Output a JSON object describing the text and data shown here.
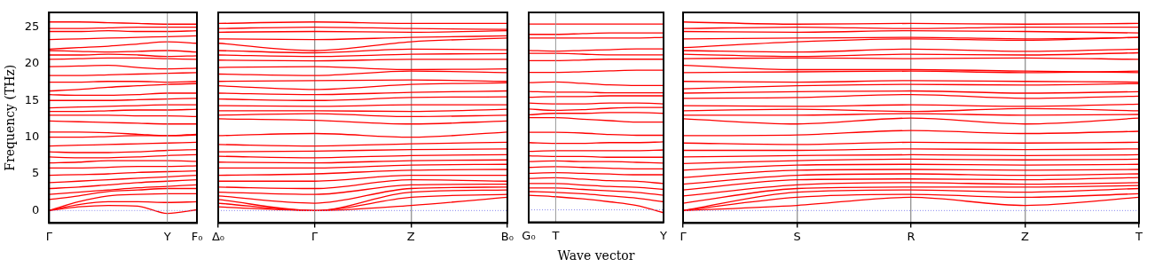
{
  "chart_data": [
    {
      "type": "line",
      "ylabel": "Frequency (THz)",
      "categories": [
        "Γ",
        null,
        null,
        null,
        "Y",
        "F₀"
      ],
      "ylim": [
        -1.7,
        27
      ],
      "yticks": [
        0,
        5,
        10,
        15,
        20,
        25
      ],
      "ref_lines": [
        {
          "axis": "y",
          "value": 0,
          "color": "#8888ee",
          "line_style": "dotted"
        },
        {
          "axis": "x",
          "value": "Y",
          "color": "#999999",
          "line_style": "solid"
        }
      ],
      "series": [
        {
          "color": "#ff0000",
          "values": [
            0,
            0.5,
            0.7,
            0.6,
            -0.4,
            0.1
          ]
        },
        {
          "color": "#ff0000",
          "values": [
            0,
            0.8,
            1.2,
            1.2,
            1.1,
            1.2
          ]
        },
        {
          "color": "#ff0000",
          "values": [
            0,
            1.2,
            2.0,
            2.2,
            2.3,
            2.3
          ]
        },
        {
          "color": "#ff0000",
          "values": [
            1.5,
            2.0,
            2.6,
            2.8,
            3.0,
            3.0
          ]
        },
        {
          "color": "#ff0000",
          "values": [
            2.2,
            2.5,
            2.8,
            3.1,
            3.3,
            3.5
          ]
        },
        {
          "color": "#ff0000",
          "values": [
            3.0,
            3.2,
            3.5,
            3.8,
            4.0,
            4.2
          ]
        },
        {
          "color": "#ff0000",
          "values": [
            3.8,
            4.0,
            4.2,
            4.4,
            4.6,
            4.8
          ]
        },
        {
          "color": "#ff0000",
          "values": [
            4.8,
            4.9,
            5.0,
            5.2,
            5.3,
            5.4
          ]
        },
        {
          "color": "#ff0000",
          "values": [
            5.8,
            5.8,
            5.9,
            6.0,
            6.0,
            6.1
          ]
        },
        {
          "color": "#ff0000",
          "values": [
            6.5,
            6.6,
            6.8,
            6.8,
            6.8,
            6.7
          ]
        },
        {
          "color": "#ff0000",
          "values": [
            7.3,
            7.2,
            7.2,
            7.3,
            7.5,
            7.6
          ]
        },
        {
          "color": "#ff0000",
          "values": [
            8.0,
            7.9,
            7.9,
            8.0,
            8.2,
            8.3
          ]
        },
        {
          "color": "#ff0000",
          "values": [
            8.8,
            8.9,
            9.0,
            9.1,
            9.2,
            9.3
          ]
        },
        {
          "color": "#ff0000",
          "values": [
            10.0,
            10.0,
            10.1,
            10.2,
            10.2,
            10.3
          ]
        },
        {
          "color": "#ff0000",
          "values": [
            10.7,
            10.7,
            10.6,
            10.4,
            10.2,
            10.4
          ]
        },
        {
          "color": "#ff0000",
          "values": [
            12.2,
            12.1,
            12.0,
            11.9,
            11.8,
            11.8
          ]
        },
        {
          "color": "#ff0000",
          "values": [
            13.0,
            13.0,
            13.0,
            12.9,
            12.9,
            12.8
          ]
        },
        {
          "color": "#ff0000",
          "values": [
            13.5,
            13.5,
            13.6,
            13.7,
            13.7,
            13.8
          ]
        },
        {
          "color": "#ff0000",
          "values": [
            14.0,
            14.1,
            14.2,
            14.3,
            14.4,
            14.4
          ]
        },
        {
          "color": "#ff0000",
          "values": [
            15.0,
            15.0,
            15.0,
            15.1,
            15.2,
            15.3
          ]
        },
        {
          "color": "#ff0000",
          "values": [
            15.8,
            15.7,
            15.7,
            15.8,
            16.0,
            16.0
          ]
        },
        {
          "color": "#ff0000",
          "values": [
            16.3,
            16.5,
            16.8,
            17.0,
            17.2,
            17.3
          ]
        },
        {
          "color": "#ff0000",
          "values": [
            17.5,
            17.5,
            17.6,
            17.6,
            17.5,
            17.6
          ]
        },
        {
          "color": "#ff0000",
          "values": [
            18.4,
            18.4,
            18.5,
            18.6,
            18.7,
            18.8
          ]
        },
        {
          "color": "#ff0000",
          "values": [
            19.6,
            19.7,
            19.8,
            19.5,
            19.3,
            19.4
          ]
        },
        {
          "color": "#ff0000",
          "values": [
            20.6,
            20.7,
            20.8,
            20.8,
            20.7,
            20.6
          ]
        },
        {
          "color": "#ff0000",
          "values": [
            21.2,
            21.2,
            21.3,
            21.2,
            21.0,
            21.1
          ]
        },
        {
          "color": "#ff0000",
          "values": [
            21.8,
            21.7,
            21.6,
            21.7,
            21.8,
            21.6
          ]
        },
        {
          "color": "#ff0000",
          "values": [
            22.0,
            22.2,
            22.4,
            22.7,
            23.0,
            22.8
          ]
        },
        {
          "color": "#ff0000",
          "values": [
            23.3,
            23.4,
            23.5,
            23.6,
            23.7,
            23.8
          ]
        },
        {
          "color": "#ff0000",
          "values": [
            24.4,
            24.4,
            24.5,
            24.4,
            24.4,
            24.5
          ]
        },
        {
          "color": "#ff0000",
          "values": [
            24.8,
            24.8,
            24.9,
            25.0,
            25.0,
            25.0
          ]
        },
        {
          "color": "#ff0000",
          "values": [
            25.7,
            25.7,
            25.6,
            25.5,
            25.4,
            25.4
          ]
        }
      ]
    },
    {
      "type": "line",
      "categories": [
        "Δ₀",
        "Γ",
        "Z",
        "B₀"
      ],
      "ylim": [
        -1.7,
        27
      ],
      "yticks": [
        0,
        5,
        10,
        15,
        20,
        25
      ],
      "tick_labels": "x",
      "grid": "x",
      "ref_lines": [
        {
          "axis": "y",
          "value": 0,
          "color": "#8888ee",
          "line_style": "dotted"
        }
      ],
      "series": [
        {
          "color": "#ff0000",
          "values": [
            0.5,
            0,
            0.7,
            1.8
          ]
        },
        {
          "color": "#ff0000",
          "values": [
            1.0,
            0,
            1.8,
            2.2
          ]
        },
        {
          "color": "#ff0000",
          "values": [
            1.5,
            0,
            2.5,
            2.8
          ]
        },
        {
          "color": "#ff0000",
          "values": [
            2.0,
            1.0,
            3.0,
            3.2
          ]
        },
        {
          "color": "#ff0000",
          "values": [
            2.5,
            2.2,
            3.5,
            3.6
          ]
        },
        {
          "color": "#ff0000",
          "values": [
            3.2,
            3.0,
            4.2,
            4.0
          ]
        },
        {
          "color": "#ff0000",
          "values": [
            4.0,
            4.0,
            4.8,
            4.8
          ]
        },
        {
          "color": "#ff0000",
          "values": [
            4.8,
            5.0,
            5.5,
            5.6
          ]
        },
        {
          "color": "#ff0000",
          "values": [
            5.8,
            5.8,
            6.2,
            6.3
          ]
        },
        {
          "color": "#ff0000",
          "values": [
            6.6,
            6.5,
            6.8,
            6.9
          ]
        },
        {
          "color": "#ff0000",
          "values": [
            7.4,
            7.2,
            7.5,
            7.6
          ]
        },
        {
          "color": "#ff0000",
          "values": [
            8.0,
            8.1,
            8.3,
            8.4
          ]
        },
        {
          "color": "#ff0000",
          "values": [
            9.0,
            8.8,
            9.1,
            9.3
          ]
        },
        {
          "color": "#ff0000",
          "values": [
            10.2,
            10.5,
            10.0,
            10.7
          ]
        },
        {
          "color": "#ff0000",
          "values": [
            12.5,
            12.3,
            11.8,
            12.2
          ]
        },
        {
          "color": "#ff0000",
          "values": [
            13.0,
            13.2,
            12.8,
            13.0
          ]
        },
        {
          "color": "#ff0000",
          "values": [
            13.6,
            13.6,
            13.5,
            13.8
          ]
        },
        {
          "color": "#ff0000",
          "values": [
            14.3,
            14.2,
            14.4,
            14.4
          ]
        },
        {
          "color": "#ff0000",
          "values": [
            15.2,
            15.0,
            15.4,
            15.5
          ]
        },
        {
          "color": "#ff0000",
          "values": [
            16.0,
            15.8,
            16.1,
            16.3
          ]
        },
        {
          "color": "#ff0000",
          "values": [
            17.0,
            16.5,
            17.2,
            17.4
          ]
        },
        {
          "color": "#ff0000",
          "values": [
            17.6,
            17.7,
            17.8,
            17.6
          ]
        },
        {
          "color": "#ff0000",
          "values": [
            18.6,
            18.4,
            19.0,
            18.8
          ]
        },
        {
          "color": "#ff0000",
          "values": [
            19.5,
            19.6,
            19.2,
            19.3
          ]
        },
        {
          "color": "#ff0000",
          "values": [
            20.5,
            20.4,
            20.6,
            20.6
          ]
        },
        {
          "color": "#ff0000",
          "values": [
            21.2,
            21.0,
            21.3,
            21.4
          ]
        },
        {
          "color": "#ff0000",
          "values": [
            21.8,
            21.5,
            22.0,
            21.9
          ]
        },
        {
          "color": "#ff0000",
          "values": [
            22.8,
            21.8,
            23.0,
            23.5
          ]
        },
        {
          "color": "#ff0000",
          "values": [
            23.4,
            23.3,
            23.6,
            23.8
          ]
        },
        {
          "color": "#ff0000",
          "values": [
            24.3,
            24.4,
            24.3,
            24.5
          ]
        },
        {
          "color": "#ff0000",
          "values": [
            24.8,
            25.0,
            24.8,
            24.7
          ]
        },
        {
          "color": "#ff0000",
          "values": [
            25.5,
            25.7,
            25.5,
            25.5
          ]
        }
      ]
    },
    {
      "type": "line",
      "xlabel": "Wave vector",
      "categories": [
        "G₀",
        "T",
        null,
        null,
        null,
        "Y"
      ],
      "ylim": [
        -1.7,
        27
      ],
      "yticks": [
        0,
        5,
        10,
        15,
        20,
        25
      ],
      "tick_labels": "x",
      "ref_lines": [
        {
          "axis": "y",
          "value": 0,
          "color": "#8888ee",
          "line_style": "dotted"
        },
        {
          "axis": "x",
          "value": "T",
          "color": "#999999",
          "line_style": "solid"
        }
      ],
      "series": [
        {
          "color": "#ff0000",
          "values": [
            2.0,
            1.8,
            1.5,
            1.1,
            0.6,
            -0.4
          ]
        },
        {
          "color": "#ff0000",
          "values": [
            2.5,
            2.4,
            2.2,
            1.9,
            1.6,
            1.1
          ]
        },
        {
          "color": "#ff0000",
          "values": [
            3.0,
            3.0,
            2.8,
            2.6,
            2.4,
            2.0
          ]
        },
        {
          "color": "#ff0000",
          "values": [
            3.6,
            3.6,
            3.4,
            3.2,
            3.1,
            2.8
          ]
        },
        {
          "color": "#ff0000",
          "values": [
            4.3,
            4.4,
            4.2,
            4.0,
            3.9,
            3.6
          ]
        },
        {
          "color": "#ff0000",
          "values": [
            5.0,
            5.1,
            5.0,
            4.9,
            4.8,
            4.8
          ]
        },
        {
          "color": "#ff0000",
          "values": [
            5.8,
            5.9,
            5.8,
            5.7,
            5.6,
            5.6
          ]
        },
        {
          "color": "#ff0000",
          "values": [
            6.6,
            6.7,
            6.6,
            6.6,
            6.5,
            6.4
          ]
        },
        {
          "color": "#ff0000",
          "values": [
            7.4,
            7.3,
            7.3,
            7.2,
            7.2,
            7.2
          ]
        },
        {
          "color": "#ff0000",
          "values": [
            8.0,
            8.1,
            8.1,
            8.1,
            8.1,
            8.2
          ]
        },
        {
          "color": "#ff0000",
          "values": [
            9.2,
            9.1,
            9.1,
            9.2,
            9.2,
            9.3
          ]
        },
        {
          "color": "#ff0000",
          "values": [
            10.6,
            10.6,
            10.5,
            10.3,
            10.2,
            10.2
          ]
        },
        {
          "color": "#ff0000",
          "values": [
            12.6,
            12.6,
            12.4,
            12.2,
            12.0,
            12.0
          ]
        },
        {
          "color": "#ff0000",
          "values": [
            13.0,
            13.2,
            13.2,
            13.3,
            13.3,
            13.2
          ]
        },
        {
          "color": "#ff0000",
          "values": [
            13.8,
            13.6,
            13.7,
            13.9,
            14.0,
            14.0
          ]
        },
        {
          "color": "#ff0000",
          "values": [
            14.6,
            14.5,
            14.5,
            14.6,
            14.6,
            14.5
          ]
        },
        {
          "color": "#ff0000",
          "values": [
            15.4,
            15.5,
            15.5,
            15.6,
            15.6,
            15.6
          ]
        },
        {
          "color": "#ff0000",
          "values": [
            16.2,
            16.1,
            16.1,
            16.0,
            16.0,
            16.0
          ]
        },
        {
          "color": "#ff0000",
          "values": [
            17.4,
            17.5,
            17.3,
            17.1,
            17.0,
            17.0
          ]
        },
        {
          "color": "#ff0000",
          "values": [
            18.8,
            18.8,
            18.9,
            19.0,
            19.1,
            19.1
          ]
        },
        {
          "color": "#ff0000",
          "values": [
            20.4,
            20.4,
            20.5,
            20.6,
            20.6,
            20.6
          ]
        },
        {
          "color": "#ff0000",
          "values": [
            21.4,
            21.4,
            21.3,
            21.2,
            21.2,
            21.2
          ]
        },
        {
          "color": "#ff0000",
          "values": [
            21.8,
            21.7,
            21.8,
            21.9,
            22.0,
            22.0
          ]
        },
        {
          "color": "#ff0000",
          "values": [
            23.5,
            23.5,
            23.5,
            23.5,
            23.5,
            23.6
          ]
        },
        {
          "color": "#ff0000",
          "values": [
            24.0,
            24.0,
            24.1,
            24.2,
            24.2,
            24.2
          ]
        },
        {
          "color": "#ff0000",
          "values": [
            25.4,
            25.4,
            25.4,
            25.4,
            25.4,
            25.4
          ]
        }
      ]
    },
    {
      "type": "line",
      "categories": [
        "Γ",
        "S",
        "R",
        "Z",
        "T"
      ],
      "ylim": [
        -1.7,
        27
      ],
      "yticks": [
        0,
        5,
        10,
        15,
        20,
        25
      ],
      "tick_labels": "x",
      "grid": "x",
      "ref_lines": [
        {
          "axis": "y",
          "value": 0,
          "color": "#8888ee",
          "line_style": "dotted"
        }
      ],
      "series": [
        {
          "color": "#ff0000",
          "values": [
            0,
            0.7,
            1.8,
            0.7,
            1.8
          ]
        },
        {
          "color": "#ff0000",
          "values": [
            0,
            1.8,
            2.2,
            1.8,
            2.3
          ]
        },
        {
          "color": "#ff0000",
          "values": [
            0,
            2.5,
            2.8,
            2.5,
            3.0
          ]
        },
        {
          "color": "#ff0000",
          "values": [
            1.0,
            3.0,
            3.2,
            3.2,
            3.4
          ]
        },
        {
          "color": "#ff0000",
          "values": [
            2.0,
            3.5,
            3.8,
            3.6,
            3.8
          ]
        },
        {
          "color": "#ff0000",
          "values": [
            2.8,
            4.2,
            4.3,
            4.2,
            4.5
          ]
        },
        {
          "color": "#ff0000",
          "values": [
            3.6,
            4.8,
            5.0,
            4.8,
            5.0
          ]
        },
        {
          "color": "#ff0000",
          "values": [
            4.5,
            5.5,
            5.6,
            5.5,
            5.6
          ]
        },
        {
          "color": "#ff0000",
          "values": [
            5.5,
            6.2,
            6.3,
            6.2,
            6.3
          ]
        },
        {
          "color": "#ff0000",
          "values": [
            6.4,
            6.8,
            7.0,
            6.9,
            7.0
          ]
        },
        {
          "color": "#ff0000",
          "values": [
            7.3,
            7.5,
            7.6,
            7.5,
            7.6
          ]
        },
        {
          "color": "#ff0000",
          "values": [
            8.2,
            8.2,
            8.4,
            8.3,
            8.4
          ]
        },
        {
          "color": "#ff0000",
          "values": [
            9.2,
            9.0,
            9.3,
            9.2,
            9.3
          ]
        },
        {
          "color": "#ff0000",
          "values": [
            10.2,
            10.3,
            10.9,
            10.5,
            10.8
          ]
        },
        {
          "color": "#ff0000",
          "values": [
            12.5,
            11.8,
            12.6,
            11.8,
            12.6
          ]
        },
        {
          "color": "#ff0000",
          "values": [
            13.0,
            13.0,
            13.2,
            13.0,
            13.1
          ]
        },
        {
          "color": "#ff0000",
          "values": [
            13.6,
            13.8,
            13.5,
            13.9,
            13.6
          ]
        },
        {
          "color": "#ff0000",
          "values": [
            14.3,
            14.2,
            14.4,
            14.2,
            14.5
          ]
        },
        {
          "color": "#ff0000",
          "values": [
            15.3,
            15.4,
            15.8,
            15.3,
            15.6
          ]
        },
        {
          "color": "#ff0000",
          "values": [
            16.0,
            16.2,
            16.3,
            16.0,
            16.2
          ]
        },
        {
          "color": "#ff0000",
          "values": [
            16.6,
            17.0,
            17.2,
            17.1,
            17.3
          ]
        },
        {
          "color": "#ff0000",
          "values": [
            17.6,
            17.5,
            17.7,
            17.6,
            17.5
          ]
        },
        {
          "color": "#ff0000",
          "values": [
            18.8,
            18.9,
            19.0,
            18.8,
            19.0
          ]
        },
        {
          "color": "#ff0000",
          "values": [
            19.8,
            19.2,
            19.2,
            19.0,
            18.8
          ]
        },
        {
          "color": "#ff0000",
          "values": [
            20.7,
            20.8,
            20.7,
            20.8,
            20.6
          ]
        },
        {
          "color": "#ff0000",
          "values": [
            21.3,
            21.0,
            21.3,
            21.2,
            21.5
          ]
        },
        {
          "color": "#ff0000",
          "values": [
            21.8,
            21.6,
            22.0,
            21.7,
            22.0
          ]
        },
        {
          "color": "#ff0000",
          "values": [
            22.2,
            23.0,
            23.4,
            23.2,
            23.6
          ]
        },
        {
          "color": "#ff0000",
          "values": [
            23.4,
            23.5,
            23.6,
            23.4,
            23.6
          ]
        },
        {
          "color": "#ff0000",
          "values": [
            24.4,
            24.3,
            24.5,
            24.4,
            24.2
          ]
        },
        {
          "color": "#ff0000",
          "values": [
            24.8,
            25.0,
            24.8,
            25.0,
            25.0
          ]
        },
        {
          "color": "#ff0000",
          "values": [
            25.7,
            25.4,
            25.5,
            25.4,
            25.5
          ]
        }
      ]
    }
  ]
}
